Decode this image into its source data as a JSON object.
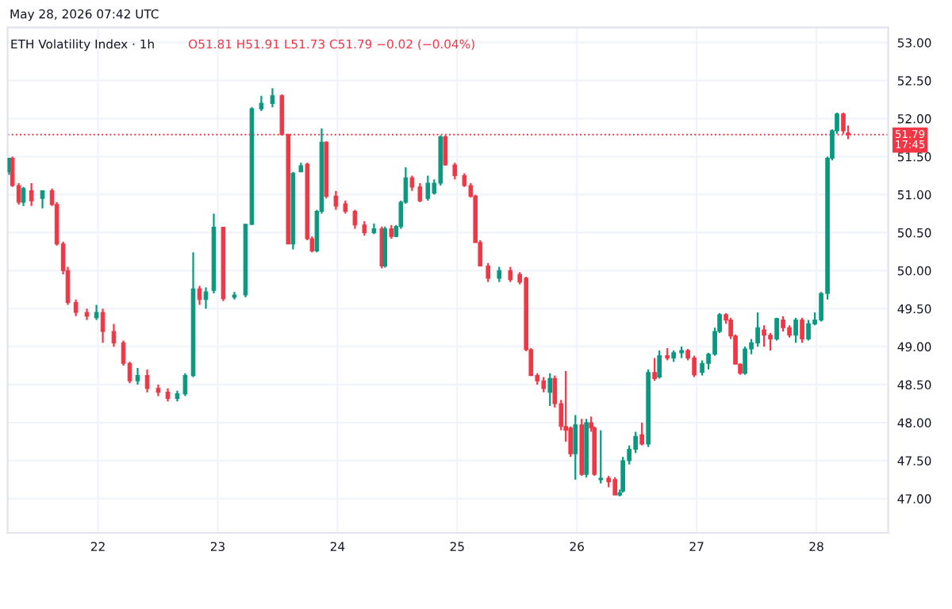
{
  "chart_data": {
    "type": "candlestick",
    "title": "ETH Volatility Index · 1h",
    "annotations": [
      "May 28, 2026 07:42 UTC",
      "O51.81 H51.91 L51.73 C51.79 −0.02 (−0.04%)"
    ],
    "x": [
      21.258,
      21.285,
      21.338,
      21.377,
      21.444,
      21.536,
      21.616,
      21.656,
      21.709,
      21.748,
      21.815,
      21.907,
      21.987,
      22.04,
      22.132,
      22.212,
      22.265,
      22.331,
      22.411,
      22.503,
      22.583,
      22.662,
      22.728,
      22.795,
      22.848,
      22.901,
      22.967,
      23.046,
      23.139,
      23.232,
      23.285,
      23.364,
      23.457,
      23.536,
      23.589,
      23.629,
      23.695,
      23.748,
      23.788,
      23.828,
      23.868,
      23.907,
      23.987,
      24.066,
      24.146,
      24.225,
      24.305,
      24.371,
      24.397,
      24.45,
      24.49,
      24.53,
      24.57,
      24.623,
      24.689,
      24.755,
      24.808,
      24.861,
      24.901,
      24.98,
      25.06,
      25.113,
      25.152,
      25.192,
      25.258,
      25.351,
      25.444,
      25.523,
      25.576,
      25.616,
      25.669,
      25.722,
      25.775,
      25.815,
      25.868,
      25.907,
      25.947,
      25.987,
      26.04,
      26.079,
      26.119,
      26.146,
      26.199,
      26.265,
      26.318,
      26.358,
      26.384,
      26.437,
      26.49,
      26.543,
      26.596,
      26.649,
      26.689,
      26.755,
      26.808,
      26.874,
      26.927,
      26.98,
      27.046,
      27.099,
      27.152,
      27.192,
      27.245,
      27.285,
      27.324,
      27.364,
      27.404,
      27.457,
      27.51,
      27.563,
      27.616,
      27.669,
      27.722,
      27.775,
      27.828,
      27.881,
      27.934,
      27.987,
      28.04,
      28.093,
      28.132,
      28.172,
      28.225,
      28.265
    ],
    "ohlc": [
      [
        51.3,
        51.48,
        51.26,
        51.48
      ],
      [
        51.48,
        51.5,
        51.1,
        51.12
      ],
      [
        51.12,
        51.15,
        50.87,
        50.9
      ],
      [
        50.9,
        51.1,
        50.85,
        51.08
      ],
      [
        51.05,
        51.15,
        50.85,
        50.92
      ],
      [
        50.95,
        51.05,
        50.82,
        51.05
      ],
      [
        51.05,
        51.08,
        50.85,
        50.87
      ],
      [
        50.87,
        50.9,
        50.33,
        50.35
      ],
      [
        50.35,
        50.38,
        49.95,
        50.0
      ],
      [
        50.0,
        50.05,
        49.55,
        49.58
      ],
      [
        49.58,
        49.62,
        49.4,
        49.45
      ],
      [
        49.45,
        49.5,
        49.35,
        49.4
      ],
      [
        49.38,
        49.55,
        49.35,
        49.45
      ],
      [
        49.45,
        49.5,
        49.05,
        49.2
      ],
      [
        49.2,
        49.3,
        49.0,
        49.05
      ],
      [
        49.05,
        49.08,
        48.75,
        48.78
      ],
      [
        48.78,
        48.8,
        48.52,
        48.55
      ],
      [
        48.55,
        48.72,
        48.5,
        48.62
      ],
      [
        48.62,
        48.7,
        48.4,
        48.45
      ],
      [
        48.45,
        48.5,
        48.35,
        48.4
      ],
      [
        48.4,
        48.45,
        48.28,
        48.32
      ],
      [
        48.32,
        48.42,
        48.28,
        48.38
      ],
      [
        48.38,
        48.65,
        48.35,
        48.62
      ],
      [
        48.62,
        50.24,
        48.6,
        49.76
      ],
      [
        49.76,
        49.8,
        49.55,
        49.62
      ],
      [
        49.62,
        49.78,
        49.5,
        49.72
      ],
      [
        49.74,
        50.75,
        49.7,
        50.57
      ],
      [
        50.57,
        50.57,
        49.6,
        49.63
      ],
      [
        49.65,
        49.72,
        49.62,
        49.68
      ],
      [
        49.68,
        50.61,
        49.65,
        50.61
      ],
      [
        50.61,
        52.15,
        50.6,
        52.13
      ],
      [
        52.13,
        52.3,
        52.1,
        52.2
      ],
      [
        52.2,
        52.4,
        52.15,
        52.3
      ],
      [
        52.3,
        52.32,
        51.78,
        51.79
      ],
      [
        51.79,
        51.8,
        50.35,
        50.35
      ],
      [
        50.35,
        51.3,
        50.28,
        51.28
      ],
      [
        51.3,
        51.42,
        51.3,
        51.38
      ],
      [
        51.4,
        51.42,
        50.4,
        50.42
      ],
      [
        50.42,
        50.45,
        50.24,
        50.26
      ],
      [
        50.26,
        50.8,
        50.24,
        50.78
      ],
      [
        50.78,
        51.87,
        50.75,
        51.69
      ],
      [
        51.69,
        51.7,
        50.95,
        50.98
      ],
      [
        50.98,
        51.05,
        50.8,
        50.85
      ],
      [
        50.88,
        50.92,
        50.75,
        50.78
      ],
      [
        50.78,
        50.8,
        50.55,
        50.6
      ],
      [
        50.6,
        50.65,
        50.46,
        50.5
      ],
      [
        50.5,
        50.62,
        50.48,
        50.55
      ],
      [
        50.55,
        50.58,
        50.03,
        50.06
      ],
      [
        50.06,
        50.58,
        50.04,
        50.55
      ],
      [
        50.55,
        50.6,
        50.42,
        50.45
      ],
      [
        50.45,
        50.6,
        50.44,
        50.58
      ],
      [
        50.58,
        50.92,
        50.55,
        50.9
      ],
      [
        50.9,
        51.36,
        50.88,
        51.22
      ],
      [
        51.22,
        51.25,
        51.05,
        51.1
      ],
      [
        51.1,
        51.15,
        50.9,
        50.92
      ],
      [
        50.95,
        51.25,
        50.92,
        51.15
      ],
      [
        51.02,
        51.2,
        51.0,
        51.15
      ],
      [
        51.15,
        51.78,
        51.12,
        51.76
      ],
      [
        51.76,
        51.78,
        51.38,
        51.39
      ],
      [
        51.39,
        51.42,
        51.2,
        51.25
      ],
      [
        51.25,
        51.28,
        51.1,
        51.12
      ],
      [
        51.12,
        51.15,
        50.96,
        50.98
      ],
      [
        50.98,
        51.0,
        50.37,
        50.37
      ],
      [
        50.37,
        50.4,
        50.06,
        50.06
      ],
      [
        50.06,
        50.1,
        49.85,
        49.9
      ],
      [
        49.9,
        50.05,
        49.85,
        50.0
      ],
      [
        50.0,
        50.05,
        49.85,
        49.88
      ],
      [
        49.95,
        49.98,
        49.82,
        49.85
      ],
      [
        49.9,
        49.92,
        48.94,
        48.96
      ],
      [
        48.96,
        48.98,
        48.62,
        48.62
      ],
      [
        48.62,
        48.65,
        48.5,
        48.55
      ],
      [
        48.55,
        48.6,
        48.4,
        48.45
      ],
      [
        48.4,
        48.65,
        48.22,
        48.58
      ],
      [
        48.58,
        48.62,
        48.2,
        48.25
      ],
      [
        48.25,
        48.3,
        47.9,
        47.95
      ],
      [
        47.95,
        48.68,
        47.75,
        47.9
      ],
      [
        47.93,
        47.95,
        47.55,
        47.59
      ],
      [
        47.59,
        48.1,
        47.25,
        47.97
      ],
      [
        47.97,
        48.05,
        47.3,
        47.32
      ],
      [
        47.32,
        48.05,
        47.28,
        48.0
      ],
      [
        48.0,
        48.08,
        47.88,
        47.93
      ],
      [
        47.93,
        47.95,
        47.3,
        47.32
      ],
      [
        47.25,
        47.9,
        47.2,
        47.27
      ],
      [
        47.27,
        47.3,
        47.15,
        47.22
      ],
      [
        47.25,
        47.28,
        47.05,
        47.05
      ],
      [
        47.05,
        47.12,
        47.03,
        47.08
      ],
      [
        47.1,
        47.55,
        47.08,
        47.5
      ],
      [
        47.5,
        47.7,
        47.45,
        47.65
      ],
      [
        47.65,
        47.88,
        47.6,
        47.82
      ],
      [
        47.84,
        48.0,
        47.7,
        47.72
      ],
      [
        47.72,
        48.7,
        47.68,
        48.66
      ],
      [
        48.66,
        48.85,
        48.55,
        48.58
      ],
      [
        48.6,
        48.95,
        48.58,
        48.88
      ],
      [
        48.88,
        48.98,
        48.82,
        48.85
      ],
      [
        48.85,
        48.95,
        48.8,
        48.92
      ],
      [
        48.92,
        49.0,
        48.85,
        48.95
      ],
      [
        48.95,
        48.97,
        48.82,
        48.85
      ],
      [
        48.85,
        48.88,
        48.6,
        48.63
      ],
      [
        48.66,
        48.82,
        48.62,
        48.78
      ],
      [
        48.78,
        48.92,
        48.7,
        48.9
      ],
      [
        48.9,
        49.25,
        48.88,
        49.2
      ],
      [
        49.2,
        49.44,
        49.18,
        49.42
      ],
      [
        49.42,
        49.44,
        49.3,
        49.35
      ],
      [
        49.35,
        49.38,
        49.1,
        49.14
      ],
      [
        49.14,
        49.16,
        48.77,
        48.77
      ],
      [
        48.77,
        48.78,
        48.63,
        48.65
      ],
      [
        48.65,
        49.0,
        48.63,
        48.97
      ],
      [
        48.97,
        49.1,
        48.9,
        49.05
      ],
      [
        49.05,
        49.45,
        49.0,
        49.25
      ],
      [
        49.22,
        49.28,
        49.0,
        49.15
      ],
      [
        49.15,
        49.18,
        48.95,
        49.1
      ],
      [
        49.1,
        49.38,
        49.08,
        49.37
      ],
      [
        49.35,
        49.4,
        49.2,
        49.25
      ],
      [
        49.25,
        49.28,
        49.12,
        49.15
      ],
      [
        49.15,
        49.38,
        49.05,
        49.35
      ],
      [
        49.35,
        49.38,
        49.05,
        49.1
      ],
      [
        49.1,
        49.35,
        49.08,
        49.3
      ],
      [
        49.3,
        49.45,
        49.28,
        49.35
      ],
      [
        49.35,
        49.72,
        49.33,
        49.7
      ],
      [
        49.7,
        51.5,
        49.62,
        51.48
      ],
      [
        51.48,
        51.86,
        51.45,
        51.84
      ],
      [
        51.84,
        52.08,
        51.8,
        52.06
      ],
      [
        52.06,
        52.08,
        51.8,
        51.84
      ],
      [
        51.81,
        51.91,
        51.73,
        51.79
      ]
    ],
    "xlim": [
      21.245,
      28.6
    ],
    "xticks": [
      22,
      23,
      24,
      25,
      26,
      27,
      28
    ],
    "ylim": [
      46.55,
      53.2
    ],
    "yticks": [
      {
        "value": 47,
        "label": "47.00"
      },
      {
        "value": 47.5,
        "label": "47.50"
      },
      {
        "value": 48,
        "label": "48.00"
      },
      {
        "value": 48.5,
        "label": "48.50"
      },
      {
        "value": 49,
        "label": "49.00"
      },
      {
        "value": 49.5,
        "label": "49.50"
      },
      {
        "value": 50,
        "label": "50.00"
      },
      {
        "value": 50.5,
        "label": "50.50"
      },
      {
        "value": 51,
        "label": "51.00"
      },
      {
        "value": 51.5,
        "label": "51.50"
      },
      {
        "value": 52,
        "label": "52.00"
      },
      {
        "value": 52.5,
        "label": "52.50"
      },
      {
        "value": 53,
        "label": "53.00"
      }
    ],
    "ref_lines": [
      {
        "axis": "y",
        "value": 51.79,
        "label": "51.79\n17:45",
        "color": "#f23645",
        "line_style": "dotted"
      }
    ],
    "grid": true
  }
}
